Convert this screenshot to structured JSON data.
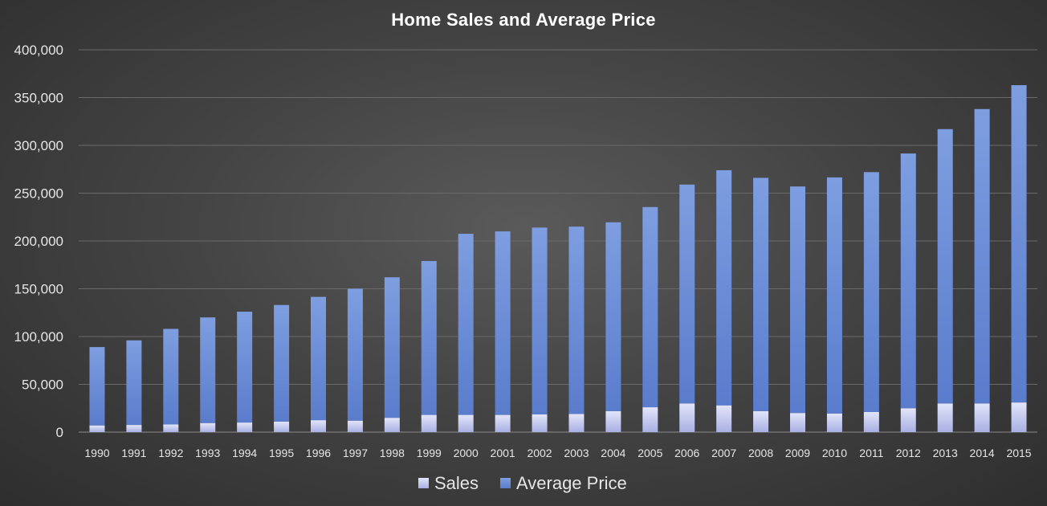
{
  "chart_data": {
    "type": "bar",
    "stacked": true,
    "title": "Home Sales and Average Price",
    "xlabel": "",
    "ylabel": "",
    "ylim": [
      0,
      400000
    ],
    "y_ticks": [
      "0",
      "50,000",
      "100,000",
      "150,000",
      "200,000",
      "250,000",
      "300,000",
      "350,000",
      "400,000"
    ],
    "y_tick_values": [
      0,
      50000,
      100000,
      150000,
      200000,
      250000,
      300000,
      350000,
      400000
    ],
    "grid": true,
    "legend_position": "bottom",
    "categories": [
      "1990",
      "1991",
      "1992",
      "1993",
      "1994",
      "1995",
      "1996",
      "1997",
      "1998",
      "1999",
      "2000",
      "2001",
      "2002",
      "2003",
      "2004",
      "2005",
      "2006",
      "2007",
      "2008",
      "2009",
      "2010",
      "2011",
      "2012",
      "2013",
      "2014",
      "2015"
    ],
    "series": [
      {
        "name": "Sales",
        "color": "#c9cdf0",
        "values": [
          7000,
          7500,
          8000,
          9500,
          10000,
          11000,
          12500,
          12000,
          15000,
          18000,
          18000,
          18000,
          18500,
          19000,
          22000,
          26000,
          30000,
          28000,
          22000,
          20000,
          19500,
          21000,
          25000,
          30000,
          30000,
          31000
        ]
      },
      {
        "name": "Average Price",
        "color": "#6a8ed6",
        "values": [
          82000,
          88500,
          100000,
          110500,
          116000,
          122000,
          129000,
          138000,
          147000,
          161000,
          189500,
          192000,
          195500,
          196000,
          197500,
          209500,
          229000,
          246000,
          244000,
          237000,
          247000,
          251000,
          266500,
          287000,
          308000,
          332000
        ]
      }
    ]
  }
}
